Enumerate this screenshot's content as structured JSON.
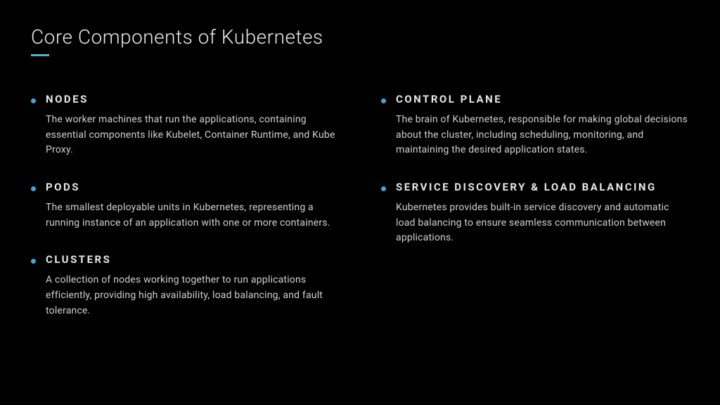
{
  "slide": {
    "title": "Core Components of Kubernetes",
    "background_color": "#000000",
    "title_color": "#e8e8e8",
    "title_fontsize": 28,
    "title_fontweight": 300,
    "underline_color": "#4db8c4",
    "bullet_color": "#3ba9d8",
    "item_title_color": "#e8e8e8",
    "item_title_fontsize": 15,
    "item_title_fontweight": 700,
    "item_desc_color": "#d0d0d0",
    "item_desc_fontsize": 14,
    "columns": [
      {
        "items": [
          {
            "title": "NODES",
            "description": "The worker machines that run the applications, containing essential components like Kubelet, Container Runtime, and Kube Proxy."
          },
          {
            "title": "PODS",
            "description": "The smallest deployable units in Kubernetes, representing a running instance of an application with one or more containers."
          },
          {
            "title": "CLUSTERS",
            "description": "A collection of nodes working together to run applications efficiently, providing high availability, load balancing, and fault tolerance."
          }
        ]
      },
      {
        "items": [
          {
            "title": "CONTROL PLANE",
            "description": "The brain of Kubernetes, responsible for making global decisions about the cluster, including scheduling, monitoring, and maintaining the desired application states."
          },
          {
            "title": "SERVICE DISCOVERY & LOAD BALANCING",
            "description": "Kubernetes provides built-in service discovery and automatic load balancing to ensure seamless communication between applications."
          }
        ]
      }
    ]
  }
}
